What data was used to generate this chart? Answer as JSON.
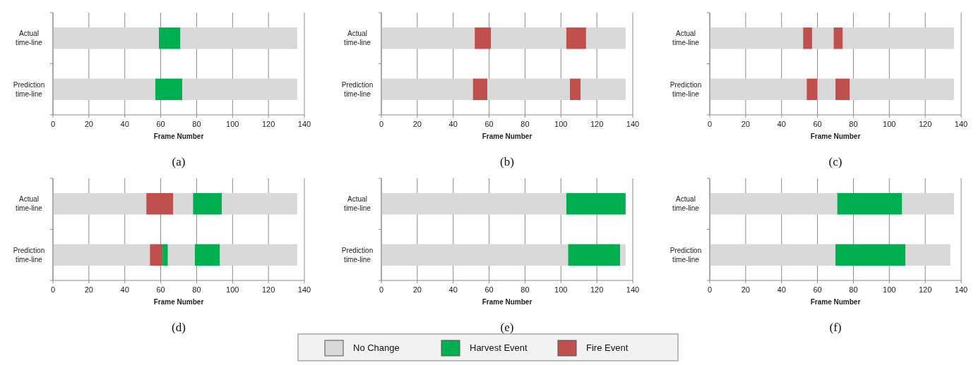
{
  "chart_data": [
    {
      "type": "bar",
      "orientation": "horizontal",
      "stacked": true,
      "title": "(a)",
      "xlabel": "Frame Number",
      "categories": [
        "Actual time-line",
        "Prediction time-line"
      ],
      "xlim": [
        0,
        140
      ],
      "xticks": [
        0,
        20,
        40,
        60,
        80,
        100,
        120,
        140
      ],
      "grid": "x",
      "legend": "bottom",
      "series": [
        {
          "name": "No Change",
          "color": "#d9d9d9",
          "values": [
            59,
            57
          ]
        },
        {
          "name": "Harvest Event",
          "color": "#00b050",
          "values": [
            12,
            15
          ]
        },
        {
          "color": "#d9d9d9",
          "values": [
            65,
            64
          ]
        }
      ]
    },
    {
      "type": "bar",
      "orientation": "horizontal",
      "stacked": true,
      "title": "(b)",
      "xlabel": "Frame Number",
      "categories": [
        "Actual time-line",
        "Prediction time-line"
      ],
      "xlim": [
        0,
        140
      ],
      "xticks": [
        0,
        20,
        40,
        60,
        80,
        100,
        120,
        140
      ],
      "grid": "x",
      "legend": "bottom",
      "series": [
        {
          "name": "No Change",
          "color": "#d9d9d9",
          "values": [
            52,
            51
          ]
        },
        {
          "name": "Fire Event",
          "color": "#c0504d",
          "values": [
            9,
            8
          ]
        },
        {
          "color": "#d9d9d9",
          "values": [
            42,
            46
          ]
        },
        {
          "color": "#c0504d",
          "values": [
            11,
            6
          ]
        },
        {
          "color": "#d9d9d9",
          "values": [
            22,
            25
          ]
        }
      ]
    },
    {
      "type": "bar",
      "orientation": "horizontal",
      "stacked": true,
      "title": "(c)",
      "xlabel": "Frame Number",
      "categories": [
        "Actual time-line",
        "Prediction time-line"
      ],
      "xlim": [
        0,
        140
      ],
      "xticks": [
        0,
        20,
        40,
        60,
        80,
        100,
        120,
        140
      ],
      "grid": "x",
      "legend": "bottom",
      "series": [
        {
          "name": "No Change",
          "color": "#d9d9d9",
          "values": [
            52,
            54
          ]
        },
        {
          "name": "Fire Event",
          "color": "#c0504d",
          "values": [
            5,
            6
          ]
        },
        {
          "color": "#d9d9d9",
          "values": [
            12,
            10
          ]
        },
        {
          "color": "#c0504d",
          "values": [
            5,
            8
          ]
        },
        {
          "color": "#d9d9d9",
          "values": [
            62,
            58
          ]
        }
      ]
    },
    {
      "type": "bar",
      "orientation": "horizontal",
      "stacked": true,
      "title": "(d)",
      "xlabel": "Frame Number",
      "categories": [
        "Actual time-line",
        "Prediction time-line"
      ],
      "xlim": [
        0,
        140
      ],
      "xticks": [
        0,
        20,
        40,
        60,
        80,
        100,
        120,
        140
      ],
      "grid": "x",
      "legend": "bottom",
      "series": [
        {
          "name": "No Change",
          "color": "#d9d9d9",
          "values": [
            52,
            54
          ]
        },
        {
          "name": "Fire Event",
          "color": "#c0504d",
          "values": [
            15,
            7
          ]
        },
        {
          "name": "Harvest Event",
          "color": "#00b050",
          "values": [
            0,
            3
          ]
        },
        {
          "color": "#d9d9d9",
          "values": [
            11,
            15
          ]
        },
        {
          "color": "#00b050",
          "values": [
            16,
            14
          ]
        },
        {
          "color": "#d9d9d9",
          "values": [
            42,
            43
          ]
        }
      ]
    },
    {
      "type": "bar",
      "orientation": "horizontal",
      "stacked": true,
      "title": "(e)",
      "xlabel": "Frame Number",
      "categories": [
        "Actual time-line",
        "Prediction time-line"
      ],
      "xlim": [
        0,
        140
      ],
      "xticks": [
        0,
        20,
        40,
        60,
        80,
        100,
        120,
        140
      ],
      "grid": "x",
      "legend": "bottom",
      "series": [
        {
          "name": "No Change",
          "color": "#d9d9d9",
          "values": [
            103,
            104
          ]
        },
        {
          "name": "Harvest Event",
          "color": "#00b050",
          "values": [
            33,
            29
          ]
        },
        {
          "color": "#d9d9d9",
          "values": [
            0,
            3
          ]
        }
      ]
    },
    {
      "type": "bar",
      "orientation": "horizontal",
      "stacked": true,
      "title": "(f)",
      "xlabel": "Frame Number",
      "categories": [
        "Actual time-line",
        "Prediction time-line"
      ],
      "xlim": [
        0,
        140
      ],
      "xticks": [
        0,
        20,
        40,
        60,
        80,
        100,
        120,
        140
      ],
      "grid": "x",
      "legend": "bottom",
      "series": [
        {
          "name": "No Change",
          "color": "#d9d9d9",
          "values": [
            71,
            70
          ]
        },
        {
          "name": "Harvest Event",
          "color": "#00b050",
          "values": [
            36,
            39
          ]
        },
        {
          "color": "#d9d9d9",
          "values": [
            29,
            25
          ]
        }
      ]
    }
  ]
}
